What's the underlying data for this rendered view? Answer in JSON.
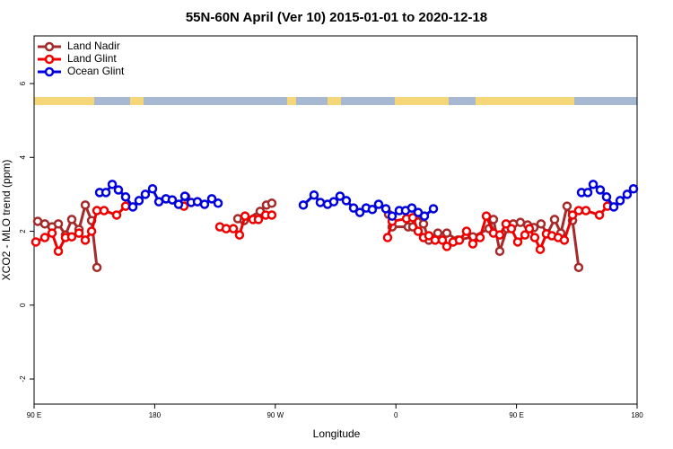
{
  "chart_data": {
    "type": "line",
    "title": "55N-60N April (Ver 10)   2015-01-01 to 2020-12-18",
    "xlabel": "Longitude",
    "ylabel": "XCO2 - MLO trend (ppm)",
    "xlim": [
      90,
      540
    ],
    "ylim": [
      -2.68,
      7.29
    ],
    "xticks": [
      {
        "value": 90,
        "label": "90 E"
      },
      180,
      {
        "value": 270,
        "label": "90 W"
      },
      {
        "value": 360,
        "label": "0"
      },
      {
        "value": 450,
        "label": "90 E"
      },
      {
        "value": 540,
        "label": "180"
      }
    ],
    "yticks": [
      -2,
      0,
      2,
      4,
      6
    ],
    "legend": "top-left",
    "series": [
      {
        "name": "Land Nadir",
        "color": "#a52a2a",
        "x": [
          92.7,
          98.0,
          103.4,
          108.1,
          113.4,
          118.1,
          123.5,
          128.2,
          132.9,
          136.9,
          null,
          203.2,
          null,
          242.0,
          246.7,
          258.7,
          263.4,
          267.4,
          null,
          354.5,
          357.2,
          369.2,
          372.6,
          375.9,
          380.6,
          384.6,
          391.3,
          398.0,
          406.1,
          417.4,
          429.5,
          432.8,
          437.5,
          442.9,
          447.6,
          452.9,
          458.3,
          463.0,
          468.3,
          473.0,
          478.4,
          483.1,
          487.7,
          491.8,
          496.4
        ],
        "values": [
          2.27,
          2.2,
          2.12,
          2.2,
          1.9,
          2.32,
          2.05,
          2.71,
          2.29,
          1.02,
          null,
          2.93,
          null,
          2.34,
          2.29,
          2.54,
          2.71,
          2.76,
          null,
          2.46,
          2.12,
          2.12,
          2.12,
          2.44,
          2.2,
          1.76,
          1.95,
          1.95,
          1.76,
          1.85,
          2.07,
          2.32,
          1.46,
          2.07,
          2.2,
          2.24,
          2.17,
          2.1,
          2.2,
          1.93,
          2.32,
          1.95,
          2.68,
          2.29,
          1.02
        ]
      },
      {
        "name": "Land Glint",
        "color": "#ee0000",
        "x": [
          91.3,
          98.0,
          103.4,
          108.1,
          113.4,
          118.1,
          123.5,
          128.2,
          132.9,
          136.9,
          142.2,
          151.6,
          158.3,
          null,
          201.8,
          null,
          228.6,
          233.3,
          238.7,
          243.3,
          247.4,
          253.4,
          257.4,
          262.8,
          267.4,
          null,
          353.8,
          357.2,
          367.9,
          372.6,
          376.6,
          380.6,
          384.6,
          389.3,
          394.7,
          398.0,
          402.7,
          407.4,
          412.7,
          417.4,
          422.8,
          427.5,
          432.8,
          437.5,
          442.2,
          446.2,
          450.9,
          456.3,
          459.6,
          463.6,
          467.7,
          472.3,
          476.4,
          481.1,
          485.7,
          491.8,
          496.4,
          501.8,
          511.9,
          517.9
        ],
        "values": [
          1.71,
          1.83,
          1.95,
          1.46,
          1.83,
          1.85,
          1.95,
          1.76,
          2.0,
          2.56,
          2.56,
          2.44,
          2.68,
          null,
          2.68,
          null,
          2.12,
          2.07,
          2.07,
          1.9,
          2.41,
          2.32,
          2.32,
          2.44,
          2.44,
          null,
          1.83,
          2.27,
          2.34,
          2.37,
          2.0,
          1.83,
          1.88,
          1.76,
          1.76,
          1.59,
          1.71,
          1.76,
          2.0,
          1.66,
          1.83,
          2.41,
          1.95,
          1.9,
          2.2,
          2.07,
          1.71,
          1.9,
          2.07,
          1.83,
          1.51,
          1.93,
          1.88,
          1.83,
          1.76,
          2.44,
          2.56,
          2.56,
          2.44,
          2.68
        ]
      },
      {
        "name": "Ocean Glint",
        "color": "#0000dd",
        "x": [
          138.9,
          143.6,
          148.3,
          152.9,
          158.3,
          163.7,
          168.3,
          173.0,
          178.4,
          183.1,
          188.4,
          193.1,
          197.8,
          202.5,
          207.2,
          211.9,
          217.2,
          222.6,
          227.3,
          null,
          290.9,
          298.9,
          303.6,
          309.0,
          313.6,
          318.3,
          323.0,
          328.4,
          333.1,
          337.8,
          342.4,
          347.1,
          352.5,
          357.2,
          362.5,
          367.2,
          371.9,
          376.6,
          381.3,
          388.0,
          null,
          498.5,
          503.2,
          507.2,
          512.5,
          517.2,
          522.6,
          527.3,
          532.6,
          537.3
        ],
        "values": [
          3.05,
          3.05,
          3.27,
          3.12,
          2.93,
          2.66,
          2.83,
          3.0,
          3.15,
          2.8,
          2.88,
          2.85,
          2.73,
          2.95,
          2.78,
          2.8,
          2.73,
          2.88,
          2.76,
          null,
          2.71,
          2.98,
          2.78,
          2.73,
          2.8,
          2.95,
          2.83,
          2.63,
          2.51,
          2.63,
          2.59,
          2.73,
          2.61,
          2.41,
          2.56,
          2.56,
          2.63,
          2.51,
          2.41,
          2.61,
          null,
          3.05,
          3.05,
          3.27,
          3.12,
          2.93,
          2.66,
          2.83,
          3.0,
          3.15
        ]
      }
    ]
  }
}
